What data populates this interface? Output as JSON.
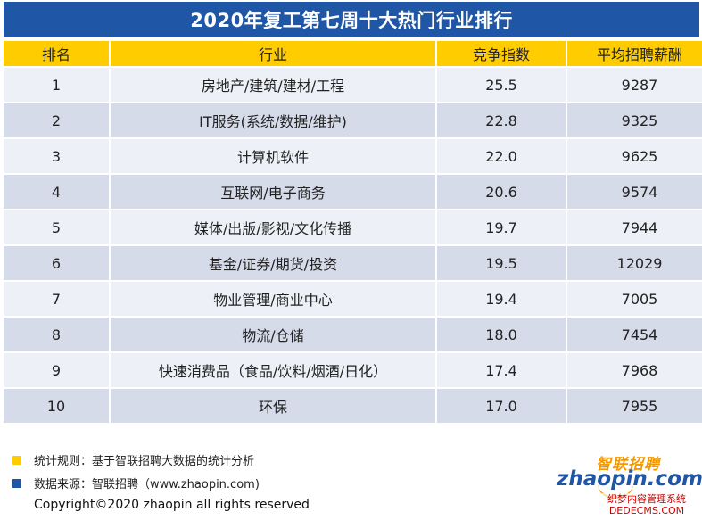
{
  "title": "2020年复工第七周十大热门行业排行",
  "headers": [
    "排名",
    "行业",
    "竞争指数",
    "平均招聘薪酬"
  ],
  "rows": [
    {
      "rank": "1",
      "industry": "房地产/建筑/建材/工程",
      "competition": "25.5",
      "salary": "9287"
    },
    {
      "rank": "2",
      "industry": "IT服务(系统/数据/维护)",
      "competition": "22.8",
      "salary": "9325"
    },
    {
      "rank": "3",
      "industry": "计算机软件",
      "competition": "22.0",
      "salary": "9625"
    },
    {
      "rank": "4",
      "industry": "互联网/电子商务",
      "competition": "20.6",
      "salary": "9574"
    },
    {
      "rank": "5",
      "industry": "媒体/出版/影视/文化传播",
      "competition": "19.7",
      "salary": "7944"
    },
    {
      "rank": "6",
      "industry": "基金/证券/期货/投资",
      "competition": "19.5",
      "salary": "12029"
    },
    {
      "rank": "7",
      "industry": "物业管理/商业中心",
      "competition": "19.4",
      "salary": "7005"
    },
    {
      "rank": "8",
      "industry": "物流/仓储",
      "competition": "18.0",
      "salary": "7454"
    },
    {
      "rank": "9",
      "industry": "快速消费品（食品/饮料/烟酒/日化）",
      "competition": "17.4",
      "salary": "7968"
    },
    {
      "rank": "10",
      "industry": "环保",
      "competition": "17.0",
      "salary": "7955"
    }
  ],
  "notes": {
    "rule": "统计规则：基于智联招聘大数据的统计分析",
    "source": "数据来源：智联招聘（www.zhaopin.com)"
  },
  "copyright": "Copyright©2020 zhaopin all rights reserved",
  "logo": {
    "cn": "智联招聘",
    "en": "zhaopin.com"
  },
  "watermark": {
    "line1": "织梦内容管理系统",
    "line2": "DEDECMS.COM"
  },
  "colors": {
    "header_blue": "#1f56a6",
    "header_yellow": "#ffcc00",
    "row_light": "#eef0f7",
    "row_dark": "#d6dbea",
    "logo_orange": "#f39800"
  }
}
